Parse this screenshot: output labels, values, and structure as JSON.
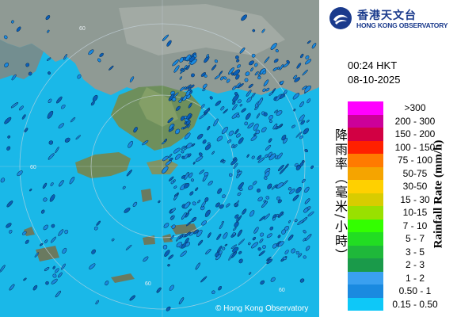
{
  "map": {
    "copyright": "© Hong Kong Observatory",
    "range_ring_labels": [
      "60",
      "60",
      "60",
      "60"
    ]
  },
  "header": {
    "org_name_cn": "香港天文台",
    "org_name_en": "HONG KONG OBSERVATORY",
    "time": "00:24 HKT",
    "date": "08-10-2025"
  },
  "legend": {
    "title_en": "Rainfall Rate (mm/h)",
    "title_cn": "降雨率（毫米/小時）",
    "items": [
      {
        "label": ">300",
        "color": "#ff00ff"
      },
      {
        "label": "200 - 300",
        "color": "#cc0099"
      },
      {
        "label": "150 - 200",
        "color": "#d20043"
      },
      {
        "label": "100 - 150",
        "color": "#ff2000"
      },
      {
        "label": "75 - 100",
        "color": "#ff7a00"
      },
      {
        "label": "50-75",
        "color": "#f5a400"
      },
      {
        "label": "30-50",
        "color": "#ffd000"
      },
      {
        "label": "15 - 30",
        "color": "#d8cc00"
      },
      {
        "label": "10-15",
        "color": "#99e000"
      },
      {
        "label": "7 - 10",
        "color": "#33ff00"
      },
      {
        "label": "5 - 7",
        "color": "#22dd22"
      },
      {
        "label": "3 - 5",
        "color": "#1fb83a"
      },
      {
        "label": "2 - 3",
        "color": "#1a9a4a"
      },
      {
        "label": "1 - 2",
        "color": "#3aa0f0"
      },
      {
        "label": "0.50 - 1",
        "color": "#1a8ae0"
      },
      {
        "label": "0.15 - 0.50",
        "color": "#0ec8f8"
      }
    ]
  }
}
